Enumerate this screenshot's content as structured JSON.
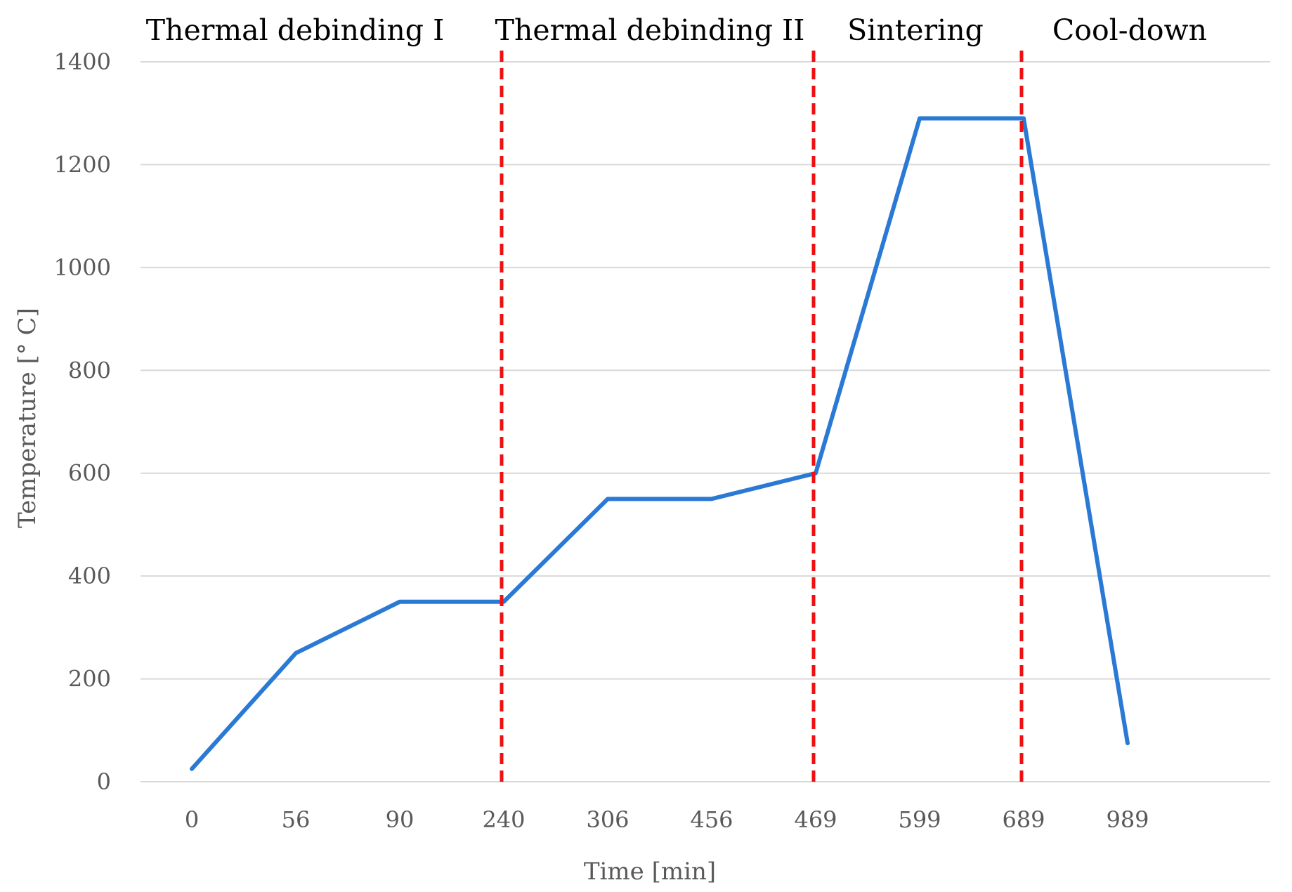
{
  "chart_data": {
    "type": "line",
    "title": "",
    "xlabel": "Time [min]",
    "ylabel": "Temperature [° C]",
    "categories": [
      "0",
      "56",
      "90",
      "240",
      "306",
      "456",
      "469",
      "599",
      "689",
      "989"
    ],
    "ylim": [
      0,
      1400
    ],
    "yticks": [
      0,
      200,
      400,
      600,
      800,
      1000,
      1200,
      1400
    ],
    "grid": true,
    "series": [
      {
        "color": "#2a7ad5",
        "points": [
          {
            "x": 0,
            "y": 25
          },
          {
            "x": 56,
            "y": 250
          },
          {
            "x": 90,
            "y": 350
          },
          {
            "x": 240,
            "y": 350
          },
          {
            "x": 306,
            "y": 550
          },
          {
            "x": 456,
            "y": 550
          },
          {
            "x": 469,
            "y": 600
          },
          {
            "x": 599,
            "y": 1290
          },
          {
            "x": 689,
            "y": 1290
          },
          {
            "x": 989,
            "y": 75
          }
        ]
      }
    ],
    "phase_dividers": {
      "color": "#ee1111",
      "at_x": [
        240,
        469,
        689
      ]
    },
    "phases": [
      {
        "label": "Thermal debinding I",
        "from_x": 0,
        "to_x": 240
      },
      {
        "label": "Thermal debinding II",
        "from_x": 240,
        "to_x": 469
      },
      {
        "label": "Sintering",
        "from_x": 469,
        "to_x": 689
      },
      {
        "label": "Cool-down",
        "from_x": 689,
        "to_x": 989
      }
    ]
  }
}
